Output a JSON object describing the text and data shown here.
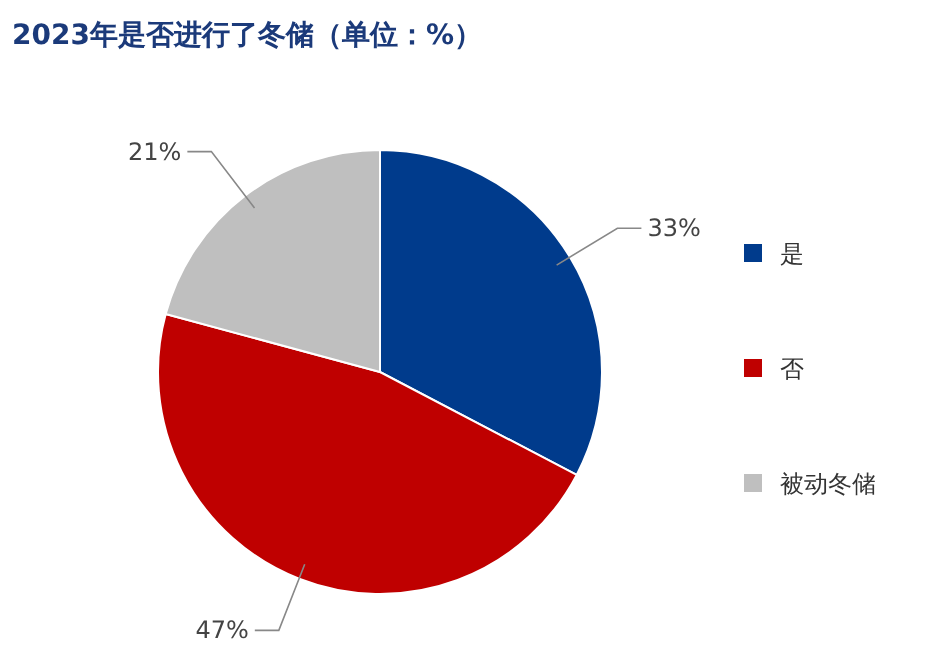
{
  "chart_data": {
    "type": "pie",
    "title": "2023年是否进行了冬储（单位：%）",
    "categories": [
      "是",
      "否",
      "被动冬储"
    ],
    "values": [
      33,
      47,
      21
    ],
    "colors": [
      "#003b8c",
      "#bf0000",
      "#bfbfbf"
    ],
    "value_labels": [
      "33%",
      "47%",
      "21%"
    ],
    "legend": "right"
  }
}
